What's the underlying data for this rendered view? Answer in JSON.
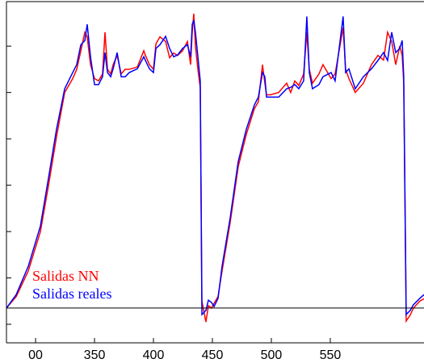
{
  "chart_data": {
    "type": "line",
    "x": [
      275.3,
      283.6,
      293.8,
      304.1,
      311.0,
      317.8,
      324.7,
      331.5,
      334.9,
      338.4,
      341.8,
      343.8,
      346.6,
      350.0,
      353.4,
      356.8,
      358.9,
      361.0,
      363.7,
      365.8,
      369.2,
      372.6,
      376.0,
      379.5,
      386.3,
      391.8,
      393.2,
      396.6,
      400.0,
      402.1,
      405.5,
      410.3,
      413.7,
      417.1,
      420.5,
      424.7,
      428.8,
      431.5,
      432.9,
      434.2,
      435.6,
      437.7,
      439.7,
      441.1,
      444.5,
      446.6,
      449.3,
      451.4,
      454.8,
      458.2,
      465.1,
      471.9,
      478.8,
      485.6,
      489.0,
      492.5,
      494.5,
      495.9,
      499.3,
      506.2,
      513.0,
      516.4,
      519.9,
      523.3,
      527.4,
      530.1,
      532.2,
      534.9,
      540.4,
      543.8,
      550.7,
      554.1,
      560.9,
      563.0,
      565.8,
      571.2,
      578.1,
      584.9,
      590.4,
      595.2,
      598.6,
      602.1,
      605.5,
      608.9,
      611.0,
      612.3,
      614.4,
      617.8,
      620.5,
      626.0,
      629.5
    ],
    "series": [
      {
        "name": "Salidas NN",
        "color": "#ff0000",
        "values": [
          0.35,
          0.6,
          1.15,
          2.0,
          3.0,
          4.05,
          5.0,
          5.3,
          5.5,
          5.9,
          6.3,
          6.2,
          5.6,
          5.3,
          5.25,
          5.4,
          6.3,
          5.5,
          5.4,
          5.6,
          5.8,
          5.4,
          5.5,
          5.5,
          5.55,
          5.9,
          5.8,
          5.6,
          5.5,
          6.05,
          6.2,
          6.1,
          5.75,
          5.85,
          5.8,
          5.9,
          6.1,
          5.6,
          6.3,
          6.7,
          6.0,
          5.5,
          5.1,
          0.5,
          0.05,
          0.4,
          0.35,
          0.45,
          0.6,
          1.15,
          2.2,
          3.4,
          4.1,
          4.65,
          4.8,
          5.6,
          5.2,
          4.95,
          4.95,
          5.0,
          5.2,
          5.0,
          5.25,
          5.15,
          5.4,
          6.3,
          5.5,
          5.2,
          5.4,
          5.6,
          5.3,
          5.4,
          6.4,
          5.5,
          5.3,
          5.0,
          5.2,
          5.6,
          5.8,
          5.7,
          6.3,
          6.1,
          5.6,
          6.0,
          5.8,
          5.2,
          0.07,
          0.2,
          0.35,
          0.5,
          0.55
        ]
      },
      {
        "name": "Salidas reales",
        "color": "#0000ff",
        "values": [
          0.35,
          0.64,
          1.25,
          2.12,
          3.16,
          4.21,
          5.08,
          5.43,
          5.6,
          6.03,
          6.12,
          6.47,
          5.77,
          5.17,
          5.17,
          5.34,
          5.86,
          5.43,
          5.34,
          5.51,
          5.86,
          5.34,
          5.34,
          5.43,
          5.51,
          5.77,
          5.69,
          5.51,
          5.43,
          5.95,
          6.03,
          6.21,
          5.95,
          5.77,
          5.81,
          5.95,
          6.03,
          5.77,
          6.47,
          6.56,
          6.3,
          5.77,
          5.25,
          0.21,
          0.3,
          0.52,
          0.47,
          0.38,
          0.56,
          1.25,
          2.3,
          3.51,
          4.21,
          4.73,
          4.9,
          5.43,
          5.34,
          4.9,
          4.9,
          4.9,
          5.08,
          5.11,
          5.17,
          5.08,
          5.25,
          6.64,
          5.43,
          5.08,
          5.17,
          5.34,
          5.43,
          5.25,
          6.64,
          5.43,
          5.51,
          5.08,
          5.34,
          5.51,
          5.69,
          5.86,
          5.69,
          6.3,
          5.86,
          5.95,
          6.12,
          5.34,
          0.21,
          0.3,
          0.42,
          0.56,
          0.64
        ]
      }
    ],
    "xlim": [
      275.3,
      629.5
    ],
    "xticks": [
      {
        "value": 300,
        "label": "00"
      },
      350,
      400,
      450,
      500,
      550
    ],
    "ylim": [
      -0.4,
      6.96
    ],
    "yticks": [
      0,
      1,
      2,
      3,
      4,
      5,
      6
    ],
    "hline": 0.35
  }
}
